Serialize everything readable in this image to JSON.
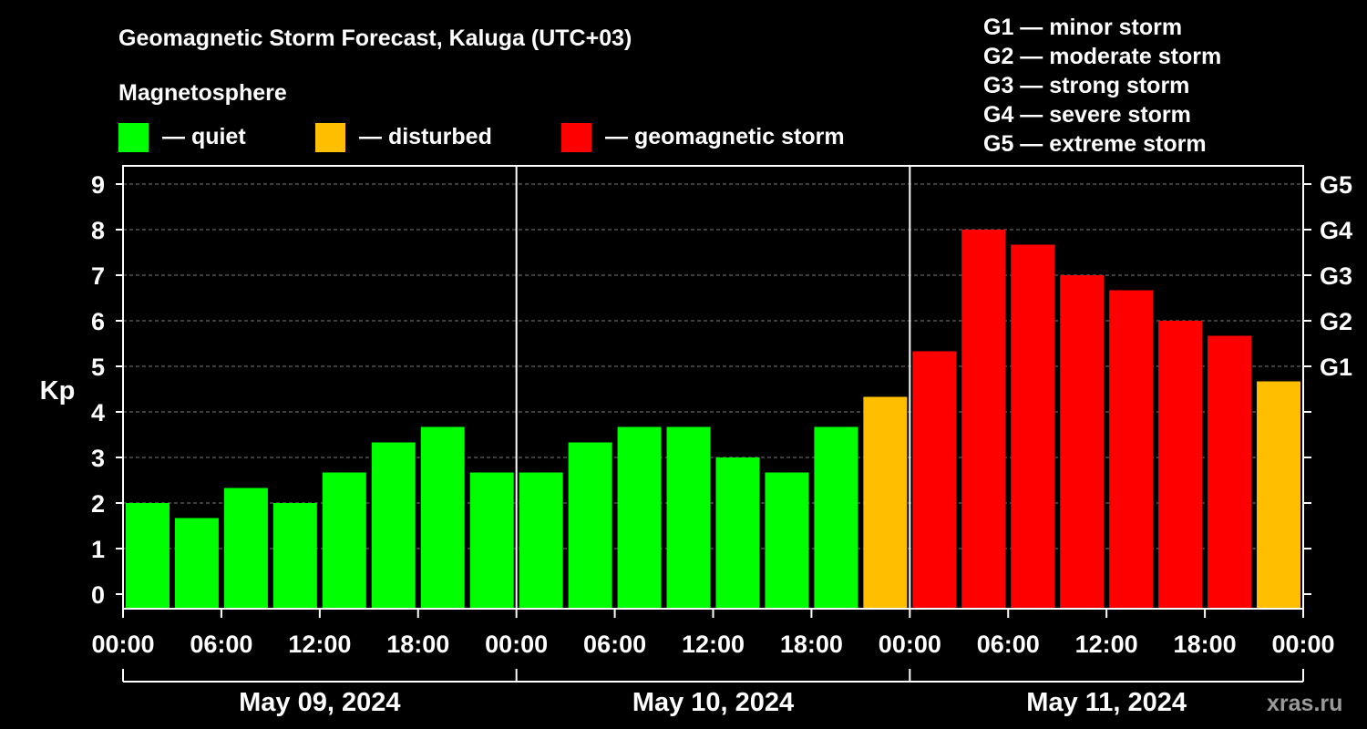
{
  "chart_data": {
    "type": "bar",
    "title": "Geomagnetic Storm Forecast, Kaluga (UTC+03)",
    "ylabel": "Kp",
    "ylim": [
      0,
      9
    ],
    "y_ticks": [
      "0",
      "1",
      "2",
      "3",
      "4",
      "5",
      "6",
      "7",
      "8",
      "9"
    ],
    "grid": "dashed horizontal",
    "g_scale_ticks": [
      {
        "label": "G1",
        "kp": 5
      },
      {
        "label": "G2",
        "kp": 6
      },
      {
        "label": "G3",
        "kp": 7
      },
      {
        "label": "G4",
        "kp": 8
      },
      {
        "label": "G5",
        "kp": 9
      }
    ],
    "x_tick_labels": [
      "00:00",
      "06:00",
      "12:00",
      "18:00",
      "00:00",
      "06:00",
      "12:00",
      "18:00",
      "00:00",
      "06:00",
      "12:00",
      "18:00",
      "00:00"
    ],
    "days": [
      "May 09, 2024",
      "May 10, 2024",
      "May 11, 2024"
    ],
    "interval_hours": 3,
    "values": [
      2.0,
      1.67,
      2.33,
      2.0,
      2.67,
      3.33,
      3.67,
      2.67,
      2.67,
      3.33,
      3.67,
      3.67,
      3.0,
      2.67,
      3.67,
      4.33,
      5.33,
      8.0,
      7.67,
      7.0,
      6.67,
      6.0,
      5.67,
      4.67
    ],
    "levels": [
      "quiet",
      "quiet",
      "quiet",
      "quiet",
      "quiet",
      "quiet",
      "quiet",
      "quiet",
      "quiet",
      "quiet",
      "quiet",
      "quiet",
      "quiet",
      "quiet",
      "quiet",
      "disturbed",
      "storm",
      "storm",
      "storm",
      "storm",
      "storm",
      "storm",
      "storm",
      "disturbed"
    ],
    "legend": {
      "heading": "Magnetosphere",
      "items": [
        {
          "key": "quiet",
          "label": "— quiet"
        },
        {
          "key": "disturbed",
          "label": "— disturbed"
        },
        {
          "key": "storm",
          "label": "— geomagnetic storm"
        }
      ]
    },
    "storm_scale": [
      "G1 — minor storm",
      "G2 — moderate storm",
      "G3 — strong storm",
      "G4 — severe storm",
      "G5 — extreme storm"
    ],
    "colors": {
      "quiet": "#00ff00",
      "disturbed": "#ffbf00",
      "storm": "#ff0000"
    }
  },
  "watermark": "xras.ru"
}
